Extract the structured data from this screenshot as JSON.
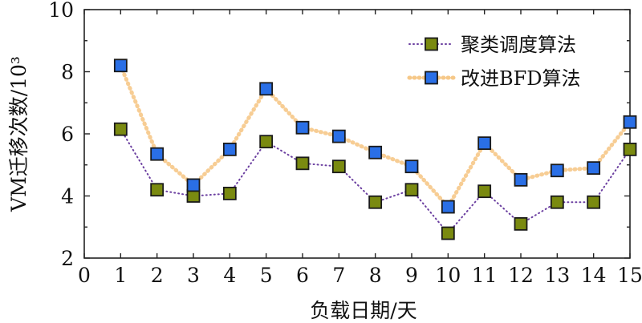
{
  "chart_data": {
    "type": "line",
    "xlabel": "负载日期/天",
    "ylabel": "VM迁移次数/10³",
    "xlim": [
      0,
      15
    ],
    "ylim": [
      2,
      10
    ],
    "xticks": [
      0,
      1,
      2,
      3,
      4,
      5,
      6,
      7,
      8,
      9,
      10,
      11,
      12,
      13,
      14,
      15
    ],
    "yticks": [
      2,
      4,
      6,
      8,
      10
    ],
    "grid": false,
    "legend_position": "top-right",
    "x": [
      1,
      2,
      3,
      4,
      5,
      6,
      7,
      8,
      9,
      10,
      11,
      12,
      13,
      14,
      15
    ],
    "series": [
      {
        "name": "聚类调度算法",
        "values": [
          6.15,
          4.2,
          4.0,
          4.08,
          5.75,
          5.05,
          4.95,
          3.8,
          4.2,
          2.8,
          4.15,
          3.1,
          3.8,
          3.8,
          5.5
        ],
        "line_color": "#6b3fa0",
        "marker_color": "#7a8a10"
      },
      {
        "name": "改进BFD算法",
        "values": [
          8.2,
          5.35,
          4.35,
          5.5,
          7.45,
          6.2,
          5.92,
          5.4,
          4.95,
          3.65,
          5.7,
          4.52,
          4.82,
          4.9,
          6.38
        ],
        "line_color": "#f6c888",
        "marker_color": "#2a6fe6"
      }
    ]
  }
}
